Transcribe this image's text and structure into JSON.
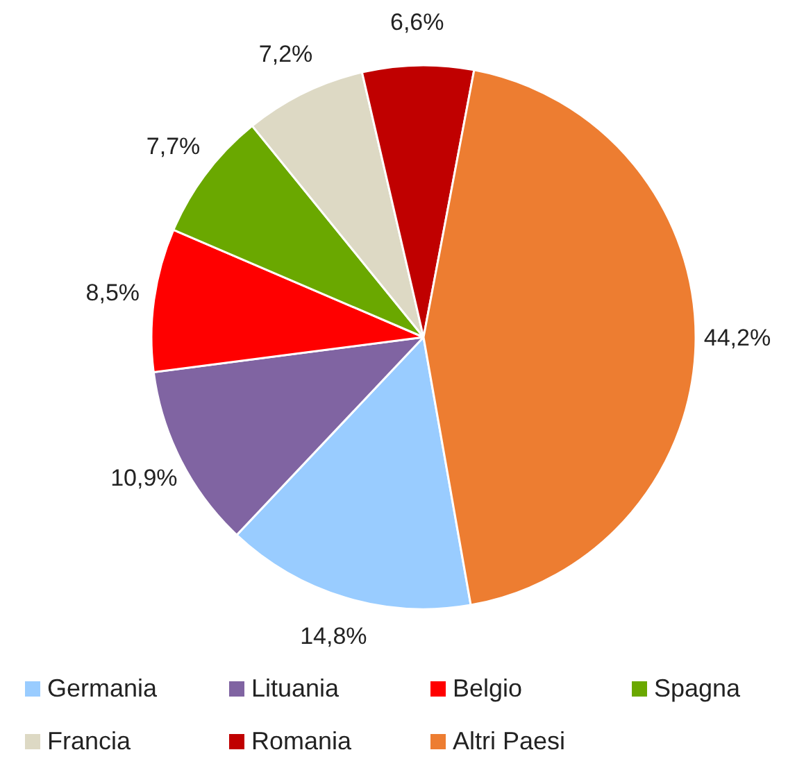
{
  "chart_data": {
    "type": "pie",
    "categories": [
      "Germania",
      "Lituania",
      "Belgio",
      "Spagna",
      "Francia",
      "Romania",
      "Altri Paesi"
    ],
    "values": [
      14.8,
      10.9,
      8.5,
      7.7,
      7.2,
      6.6,
      44.2
    ],
    "value_labels": [
      "14,8%",
      "10,9%",
      "8,5%",
      "7,7%",
      "7,2%",
      "6,6%",
      "44,2%"
    ],
    "colors": [
      "#99ccff",
      "#8064a2",
      "#ff0000",
      "#6aa800",
      "#ddd9c4",
      "#c00000",
      "#ed7d31"
    ],
    "legend": "bottom"
  }
}
